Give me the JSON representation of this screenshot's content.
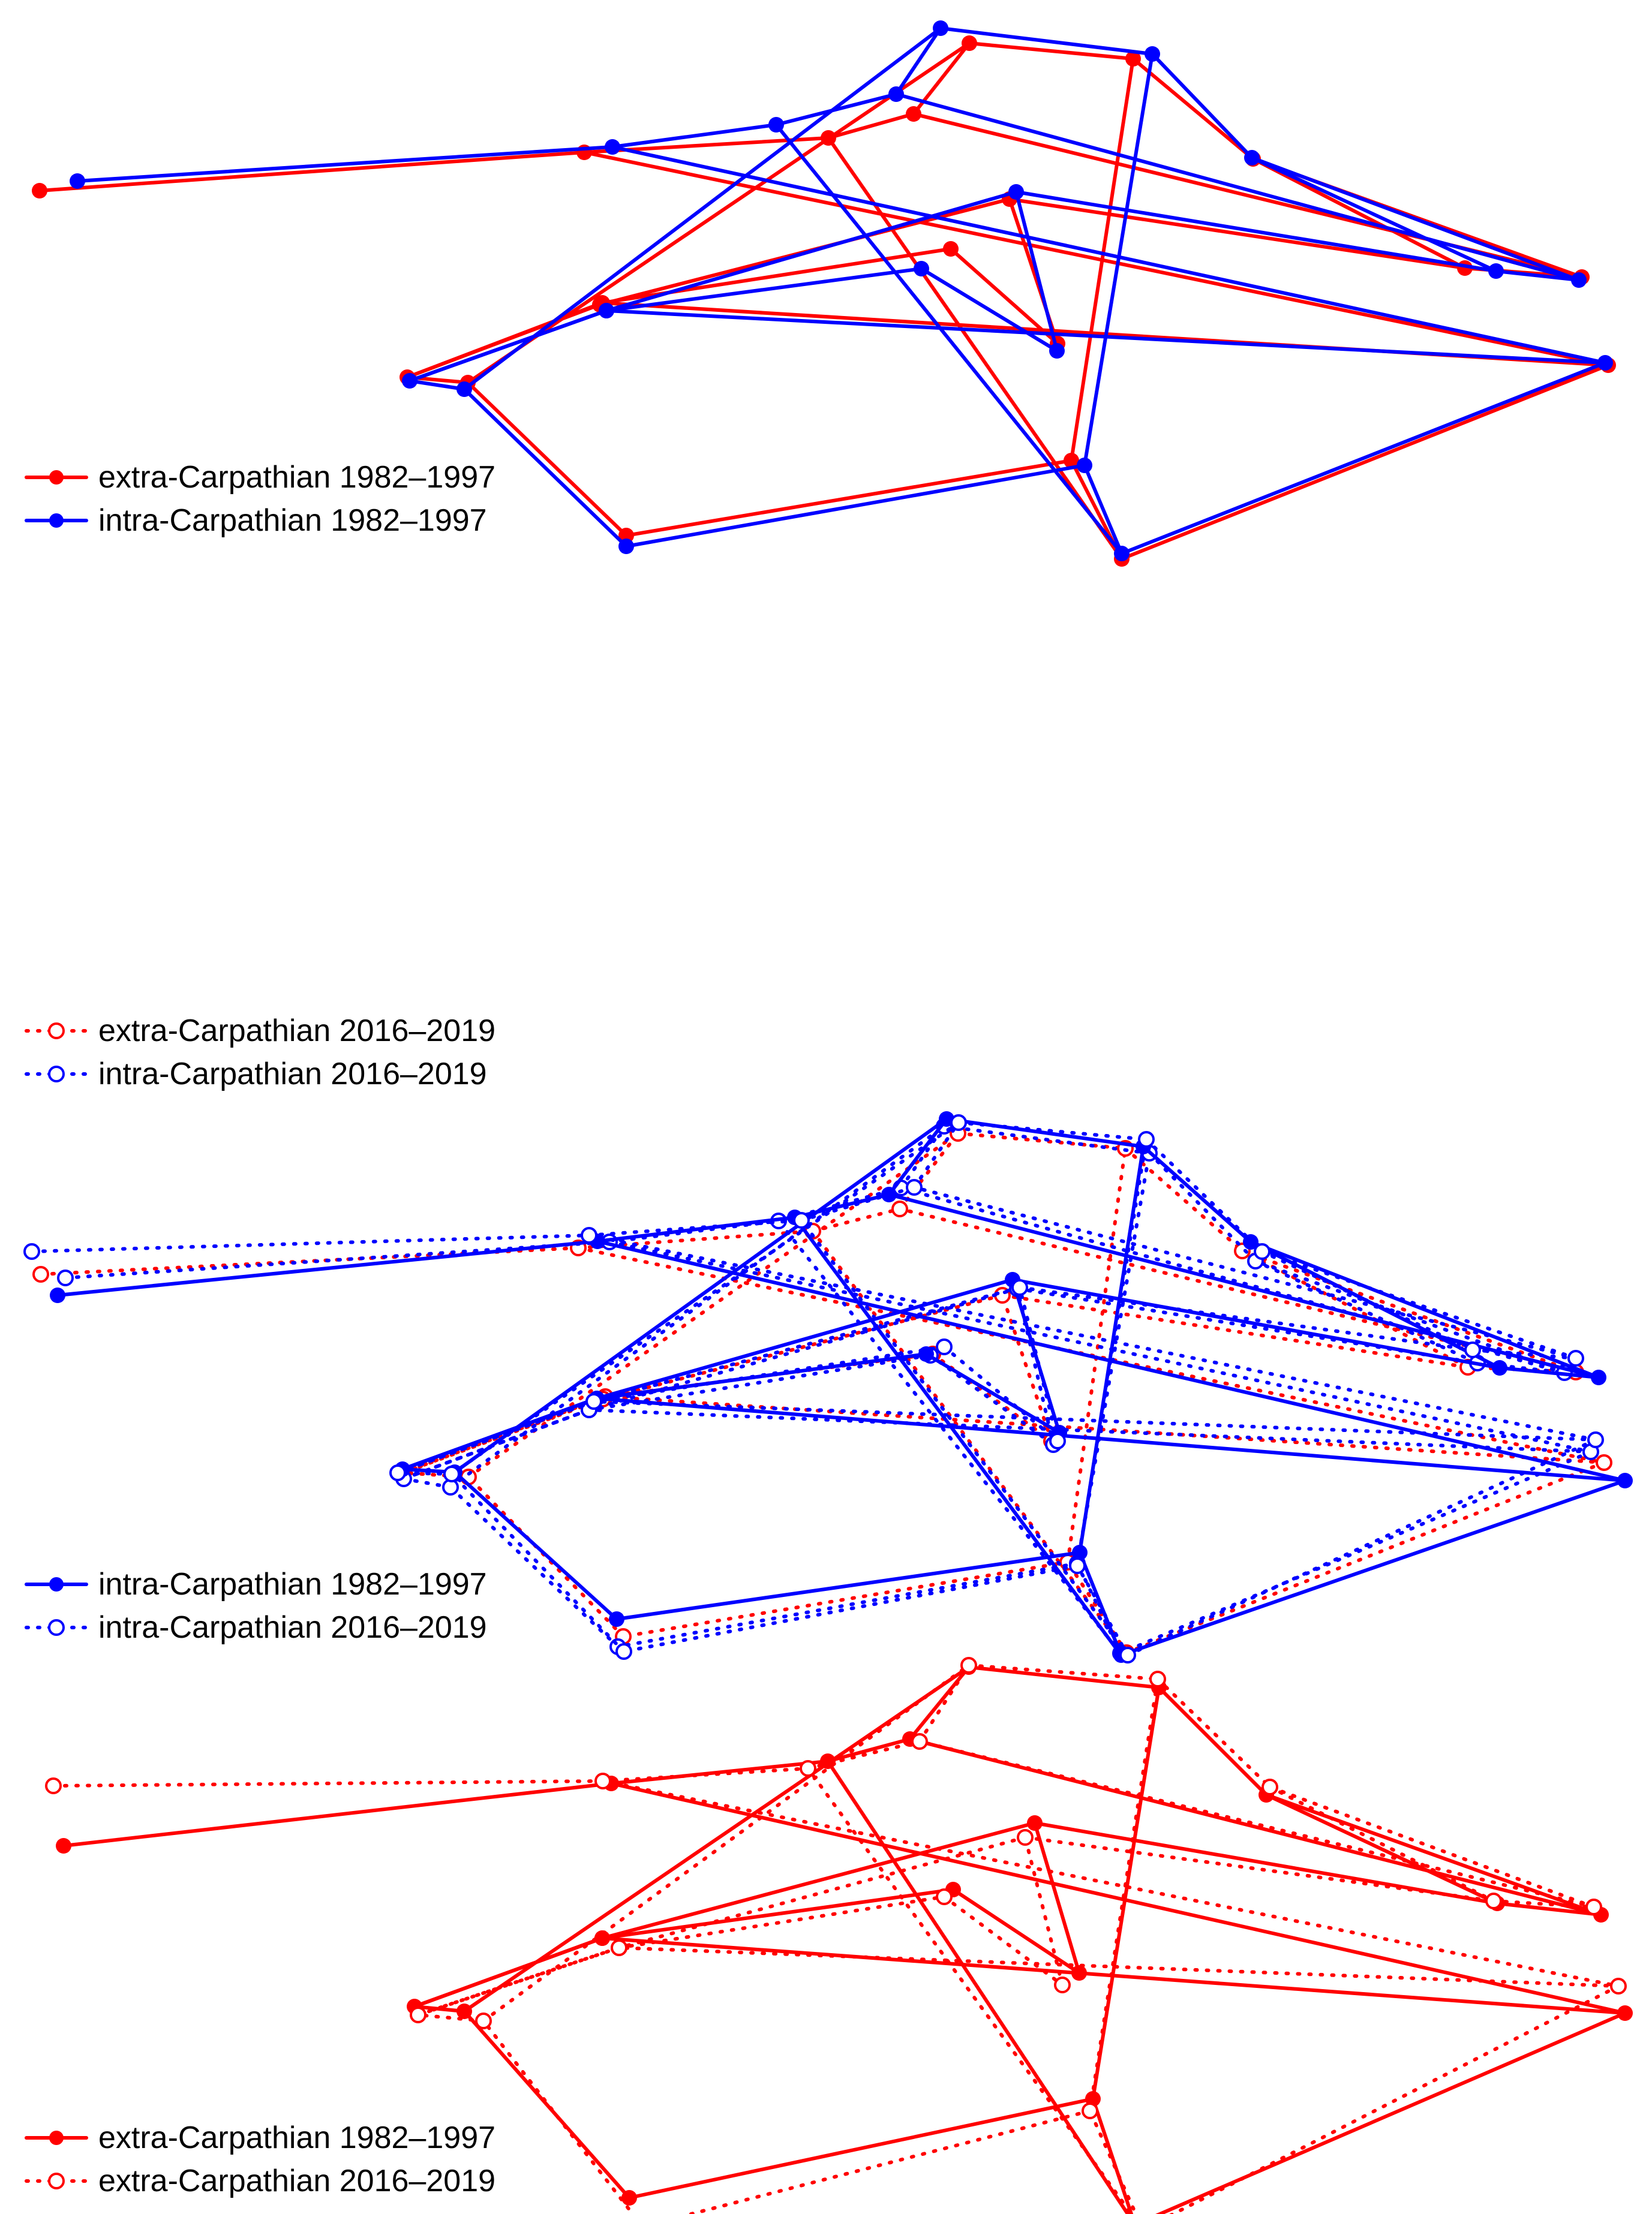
{
  "colors": {
    "extra": "#ff0000",
    "intra": "#0000ff"
  },
  "panels": [
    {
      "series": [
        {
          "legend": "extra-Carpathian 1982–1997",
          "color": "#ff0000",
          "style": "solid",
          "marker": "filled",
          "points": "A"
        },
        {
          "legend": "intra-Carpathian 1982–1997",
          "color": "#0000ff",
          "style": "solid",
          "marker": "filled",
          "points": "B"
        }
      ]
    },
    {
      "series": [
        {
          "legend": "extra-Carpathian 2016–2019",
          "color": "#ff0000",
          "style": "dotted",
          "marker": "open",
          "points": "C"
        },
        {
          "legend": "intra-Carpathian 2016–2019",
          "color": "#0000ff",
          "style": "dotted",
          "marker": "open",
          "points": "D"
        }
      ]
    },
    {
      "series": [
        {
          "legend": "intra-Carpathian 1982–1997",
          "color": "#0000ff",
          "style": "solid",
          "marker": "filled",
          "points": "E"
        },
        {
          "legend": "intra-Carpathian 2016–2019",
          "color": "#0000ff",
          "style": "dotted",
          "marker": "open",
          "points": "F"
        }
      ]
    },
    {
      "series": [
        {
          "legend": "extra-Carpathian 1982–1997",
          "color": "#ff0000",
          "style": "solid",
          "marker": "filled",
          "points": "G"
        },
        {
          "legend": "extra-Carpathian 2016–2019",
          "color": "#ff0000",
          "style": "dotted",
          "marker": "open",
          "points": "H"
        }
      ]
    }
  ]
}
